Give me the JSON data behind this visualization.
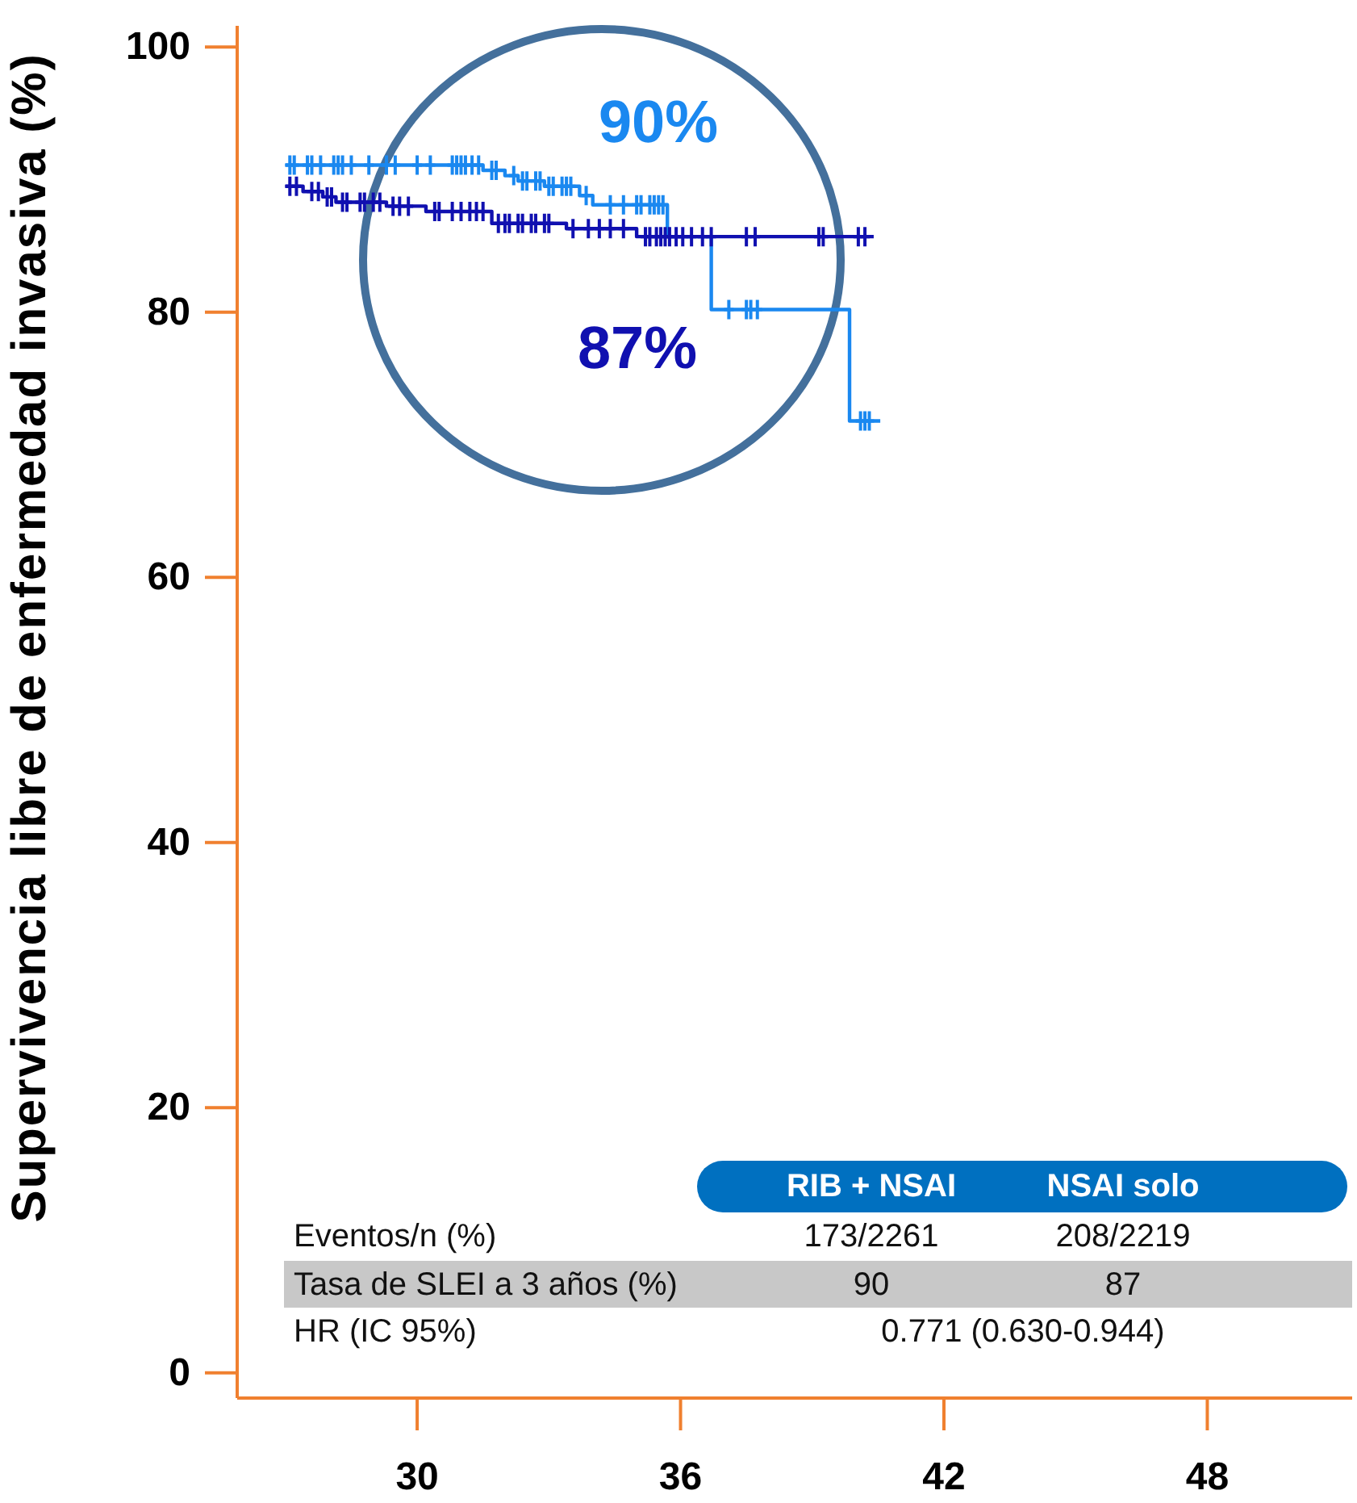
{
  "chart_data": {
    "type": "step",
    "ylabel": "Supervivencia libre de enfermedad invasiva (%)",
    "xlim": [
      25.9,
      51.3
    ],
    "xticks": [
      30,
      36,
      42,
      48
    ],
    "ylim": [
      -1.9,
      101.6
    ],
    "yticks": [
      0,
      20,
      40,
      60,
      80,
      100
    ],
    "series": [
      {
        "name": "90%",
        "color": "#1a88f0",
        "x": [
          27.0,
          31.5,
          32.0,
          32.3,
          32.9,
          33.7,
          34.0,
          35.7,
          36.7,
          39.85,
          40.55
        ],
        "values": [
          91.1,
          90.7,
          90.3,
          89.9,
          89.5,
          88.8,
          88.1,
          85.7,
          80.2,
          71.8,
          71.8
        ]
      },
      {
        "name": "87%",
        "color": "#1010b0",
        "x": [
          27.0,
          27.4,
          27.85,
          28.15,
          29.3,
          30.2,
          31.7,
          33.4,
          35.0,
          40.4
        ],
        "values": [
          89.5,
          89.1,
          88.7,
          88.3,
          88.0,
          87.6,
          86.7,
          86.3,
          85.7,
          85.7
        ]
      },
      {
        "type": "scatter",
        "color": "#1a88f0",
        "marker": "cross",
        "x": [
          27.1,
          27.2,
          27.5,
          27.6,
          27.8,
          28.1,
          28.2,
          28.3,
          28.5,
          28.9,
          29.3,
          29.5,
          30.0,
          30.3,
          30.8,
          30.9,
          31.0,
          31.1,
          31.25,
          31.4,
          31.7,
          31.8,
          32.2,
          32.4,
          32.5,
          32.7,
          32.8,
          33.0,
          33.1,
          33.3,
          33.4,
          33.5,
          33.85,
          34.4,
          34.7,
          35.0,
          35.1,
          35.3,
          35.4,
          35.5,
          35.6,
          37.1,
          37.5,
          37.6,
          37.75,
          40.1,
          40.2,
          40.3
        ],
        "values": [
          91.1,
          91.1,
          91.1,
          91.1,
          91.1,
          91.1,
          91.1,
          91.1,
          91.1,
          91.1,
          91.1,
          91.1,
          91.1,
          91.1,
          91.1,
          91.1,
          91.1,
          91.1,
          91.1,
          91.1,
          90.7,
          90.7,
          90.3,
          89.9,
          89.9,
          89.9,
          89.9,
          89.5,
          89.5,
          89.5,
          89.5,
          89.5,
          88.8,
          88.1,
          88.1,
          88.1,
          88.1,
          88.1,
          88.1,
          88.1,
          88.1,
          80.2,
          80.2,
          80.2,
          80.2,
          71.8,
          71.8,
          71.8
        ]
      },
      {
        "type": "scatter",
        "color": "#1010b0",
        "marker": "cross",
        "x": [
          27.1,
          27.25,
          27.6,
          27.75,
          27.95,
          28.05,
          28.3,
          28.4,
          28.7,
          28.8,
          29.0,
          29.15,
          29.45,
          29.6,
          29.8,
          30.4,
          30.5,
          30.8,
          31.0,
          31.2,
          31.35,
          31.5,
          31.85,
          32.0,
          32.1,
          32.3,
          32.4,
          32.6,
          32.7,
          32.9,
          33.0,
          33.55,
          33.9,
          34.15,
          34.4,
          34.7,
          35.2,
          35.3,
          35.45,
          35.55,
          35.65,
          35.75,
          35.9,
          36.05,
          36.25,
          36.5,
          36.7,
          37.5,
          37.7,
          39.15,
          39.25,
          40.05,
          40.2
        ],
        "values": [
          89.5,
          89.5,
          89.1,
          89.1,
          88.7,
          88.7,
          88.3,
          88.3,
          88.3,
          88.3,
          88.3,
          88.3,
          88.0,
          88.0,
          88.0,
          87.6,
          87.6,
          87.6,
          87.6,
          87.6,
          87.6,
          87.6,
          86.7,
          86.7,
          86.7,
          86.7,
          86.7,
          86.7,
          86.7,
          86.7,
          86.7,
          86.3,
          86.3,
          86.3,
          86.3,
          86.3,
          85.7,
          85.7,
          85.7,
          85.7,
          85.7,
          85.7,
          85.7,
          85.7,
          85.7,
          85.7,
          85.7,
          85.7,
          85.7,
          85.7,
          85.7,
          85.7,
          85.7
        ]
      }
    ],
    "annotations": [
      "RIB + NSAI",
      "NSAI solo",
      "Eventos/n (%)",
      "173/2261",
      "208/2219",
      "Tasa de SLEI a 3 años (%)",
      "90",
      "87",
      "HR (IC 95%)",
      "0.771 (0.630-0.944)"
    ]
  }
}
